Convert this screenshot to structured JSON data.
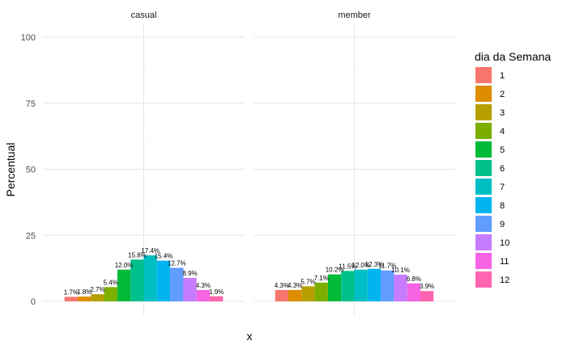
{
  "chart_data": {
    "type": "bar",
    "xlabel": "x",
    "ylabel": "Percentual",
    "ylim": [
      0,
      100
    ],
    "yticks": [
      "0",
      "25",
      "50",
      "75",
      "100"
    ],
    "grid": true,
    "legend": {
      "title": "dia da Semana",
      "position": "right",
      "entries": [
        "1",
        "2",
        "3",
        "4",
        "5",
        "6",
        "7",
        "8",
        "9",
        "10",
        "11",
        "12"
      ]
    },
    "colors": [
      "#F8766D",
      "#DE8C00",
      "#B79F00",
      "#7CAE00",
      "#00BA38",
      "#00C08B",
      "#00BFC4",
      "#00B4F0",
      "#619CFF",
      "#C77CFF",
      "#F564E3",
      "#FF64B0"
    ],
    "panels": [
      {
        "name": "casual",
        "values": [
          1.7,
          1.8,
          2.7,
          5.4,
          12.0,
          15.8,
          17.4,
          15.4,
          12.7,
          8.9,
          4.3,
          1.9
        ],
        "labels": [
          "1.7%",
          "1.8%",
          "2.7%",
          "5.4%",
          "12.0%",
          "15.8%",
          "17.4%",
          "15.4%",
          "12.7%",
          "8.9%",
          "4.3%",
          "1.9%"
        ]
      },
      {
        "name": "member",
        "values": [
          4.3,
          4.3,
          5.7,
          7.1,
          10.2,
          11.5,
          12.0,
          12.3,
          11.7,
          10.1,
          6.8,
          3.9
        ],
        "labels": [
          "4.3%",
          "4.3%",
          "5.7%",
          "7.1%",
          "10.2%",
          "11.5%",
          "12.0%",
          "12.3%",
          "11.7%",
          "10.1%",
          "6.8%",
          "3.9%"
        ]
      }
    ]
  }
}
